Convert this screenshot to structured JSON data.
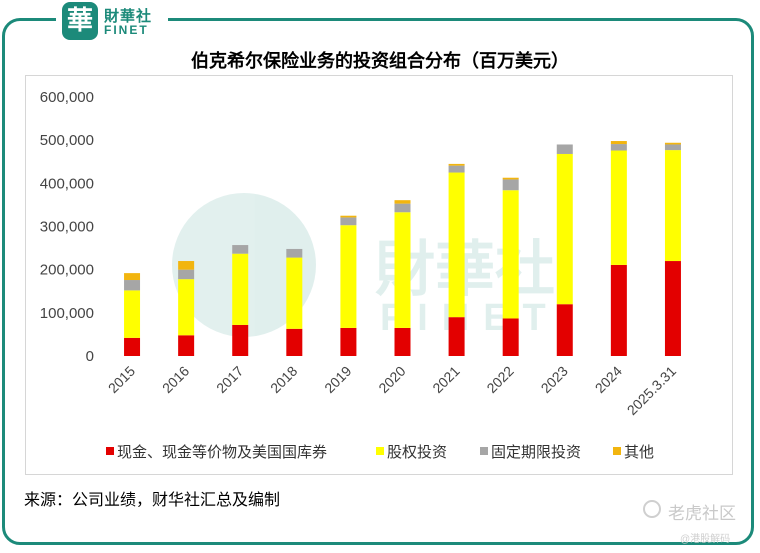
{
  "brand": {
    "logo_char": "華",
    "name_cn": "財華社",
    "name_en": "FINET"
  },
  "colors": {
    "accent": "#1c8a7a"
  },
  "watermark": {
    "cn": "財華社",
    "en": "FINET",
    "corner": "老虎社区",
    "corner_sub": "@港股解码"
  },
  "source": "来源：公司业绩，财华社汇总及编制",
  "chart_data": {
    "type": "bar",
    "stacked": true,
    "title": "伯克希尔保险业务的投资组合分布（百万美元）",
    "categories": [
      "2015",
      "2016",
      "2017",
      "2018",
      "2019",
      "2020",
      "2021",
      "2022",
      "2023",
      "2024",
      "2025.3.31"
    ],
    "ylim": [
      0,
      600000
    ],
    "yticks": [
      0,
      100000,
      200000,
      300000,
      400000,
      500000,
      600000
    ],
    "ytick_labels": [
      "0",
      "100,000",
      "200,000",
      "300,000",
      "400,000",
      "500,000",
      "600,000"
    ],
    "grid": false,
    "legend_position": "bottom",
    "series": [
      {
        "name": "现金、现金等价物及美国国库券",
        "color": "#e30000",
        "values": [
          42000,
          48000,
          72000,
          63000,
          65000,
          65000,
          90000,
          87000,
          120000,
          211000,
          220000
        ]
      },
      {
        "name": "股权投资",
        "color": "#ffff00",
        "values": [
          110000,
          130000,
          165000,
          165000,
          238000,
          268000,
          335000,
          297000,
          348000,
          265000,
          257000
        ]
      },
      {
        "name": "固定期限投资",
        "color": "#a6a6a6",
        "values": [
          24000,
          22000,
          20000,
          20000,
          18000,
          20000,
          16000,
          25000,
          22000,
          15000,
          13000
        ]
      },
      {
        "name": "其他",
        "color": "#f2b50f",
        "values": [
          16000,
          20000,
          0,
          0,
          4000,
          8000,
          4000,
          4000,
          0,
          7000,
          4000
        ]
      }
    ]
  }
}
